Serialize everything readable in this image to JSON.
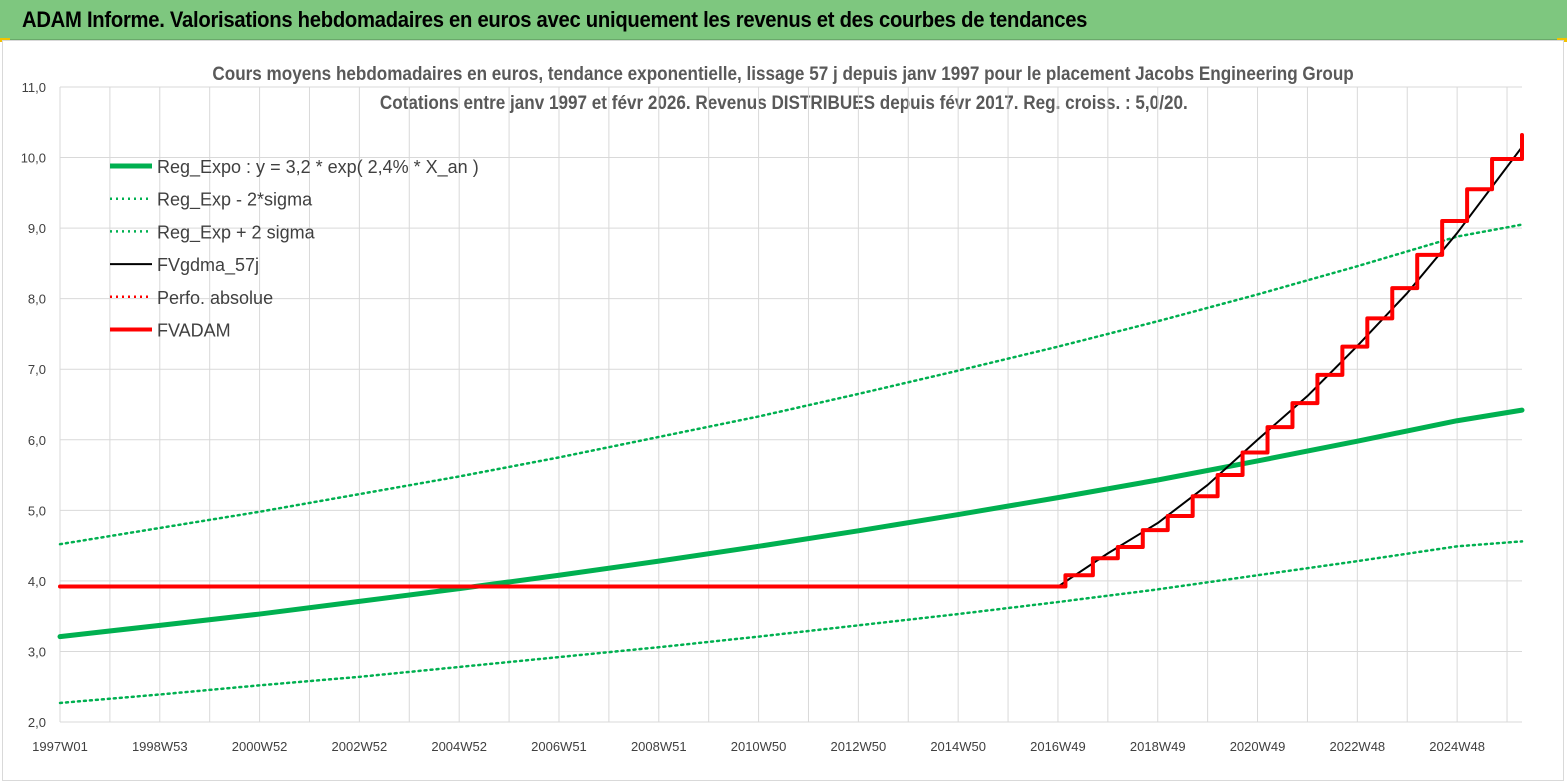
{
  "banner": {
    "title": "ADAM Informe. Valorisations hebdomadaires en euros avec uniquement les revenus et des courbes de tendances"
  },
  "chart_data": {
    "type": "line",
    "title": "Cours moyens hebdomadaires en euros, tendance exponentielle, lissage 57 j depuis janv 1997  pour le placement Jacobs Engineering Group",
    "subtitle": "Cotations entre janv 1997  et févr 2026. Revenus DISTRIBUES  depuis févr 2017. Reg. croiss. : 5,0/20.",
    "xlabel": "",
    "ylabel": "",
    "ylim": [
      2.0,
      11.0
    ],
    "y_ticks": [
      "2,0",
      "3,0",
      "4,0",
      "5,0",
      "6,0",
      "7,0",
      "8,0",
      "9,0",
      "10,0",
      "11,0"
    ],
    "x_ticks": [
      "1997W01",
      "1998W53",
      "2000W52",
      "2002W52",
      "2004W52",
      "2006W51",
      "2008W51",
      "2010W50",
      "2012W50",
      "2014W50",
      "2016W49",
      "2018W49",
      "2020W49",
      "2022W48",
      "2024W48"
    ],
    "xlim": [
      1997.0,
      2026.3
    ],
    "grid": true,
    "legend_position": "top-left",
    "series": [
      {
        "name": "Reg_Expo : y = 3,2 * exp( 2,4% *  X_an )",
        "color": "#00b050",
        "style": "solid-thick",
        "x": [
          1997.0,
          1999.0,
          2001.0,
          2003.0,
          2005.0,
          2007.0,
          2009.0,
          2011.0,
          2013.0,
          2015.0,
          2017.0,
          2019.0,
          2021.0,
          2023.0,
          2025.0,
          2026.3
        ],
        "y": [
          3.21,
          3.37,
          3.53,
          3.71,
          3.89,
          4.08,
          4.28,
          4.49,
          4.71,
          4.94,
          5.18,
          5.43,
          5.7,
          5.98,
          6.27,
          6.42
        ]
      },
      {
        "name": "Reg_Exp - 2*sigma",
        "color": "#00b050",
        "style": "dotted",
        "x": [
          1997.0,
          1999.0,
          2001.0,
          2003.0,
          2005.0,
          2007.0,
          2009.0,
          2011.0,
          2013.0,
          2015.0,
          2017.0,
          2019.0,
          2021.0,
          2023.0,
          2025.0,
          2026.3
        ],
        "y": [
          2.27,
          2.39,
          2.52,
          2.64,
          2.78,
          2.92,
          3.06,
          3.21,
          3.37,
          3.53,
          3.7,
          3.88,
          4.08,
          4.28,
          4.49,
          4.56
        ]
      },
      {
        "name": "Reg_Exp + 2 sigma",
        "color": "#00b050",
        "style": "dotted",
        "x": [
          1997.0,
          1999.0,
          2001.0,
          2003.0,
          2005.0,
          2007.0,
          2009.0,
          2011.0,
          2013.0,
          2015.0,
          2017.0,
          2019.0,
          2021.0,
          2023.0,
          2025.0,
          2026.3
        ],
        "y": [
          4.52,
          4.75,
          4.98,
          5.23,
          5.48,
          5.75,
          6.04,
          6.33,
          6.65,
          6.98,
          7.32,
          7.68,
          8.06,
          8.46,
          8.88,
          9.05
        ]
      },
      {
        "name": "FVgdma_57j",
        "color": "#000000",
        "style": "solid-thin",
        "x": [
          1997.0,
          2017.0,
          2018.0,
          2019.0,
          2020.0,
          2021.0,
          2022.0,
          2023.0,
          2024.0,
          2025.0,
          2026.3
        ],
        "y": [
          3.92,
          3.92,
          4.39,
          4.82,
          5.36,
          6.0,
          6.62,
          7.33,
          8.08,
          8.93,
          10.15
        ]
      },
      {
        "name": "Perfo. absolue",
        "color": "#ff0000",
        "style": "dotted",
        "x": [
          1997.0,
          2017.0
        ],
        "y": [
          3.92,
          3.92
        ]
      },
      {
        "name": "FVADAM",
        "color": "#ff0000",
        "style": "solid-thick-stepped",
        "x": [
          1997.0,
          2017.15,
          2017.7,
          2018.2,
          2018.7,
          2019.2,
          2019.7,
          2020.2,
          2020.7,
          2021.2,
          2021.7,
          2022.2,
          2022.7,
          2023.2,
          2023.7,
          2024.2,
          2024.7,
          2025.2,
          2025.7,
          2026.3
        ],
        "y": [
          3.92,
          4.08,
          4.32,
          4.48,
          4.72,
          4.92,
          5.2,
          5.5,
          5.82,
          6.18,
          6.52,
          6.92,
          7.32,
          7.72,
          8.15,
          8.62,
          9.1,
          9.55,
          9.98,
          10.32
        ]
      }
    ]
  }
}
